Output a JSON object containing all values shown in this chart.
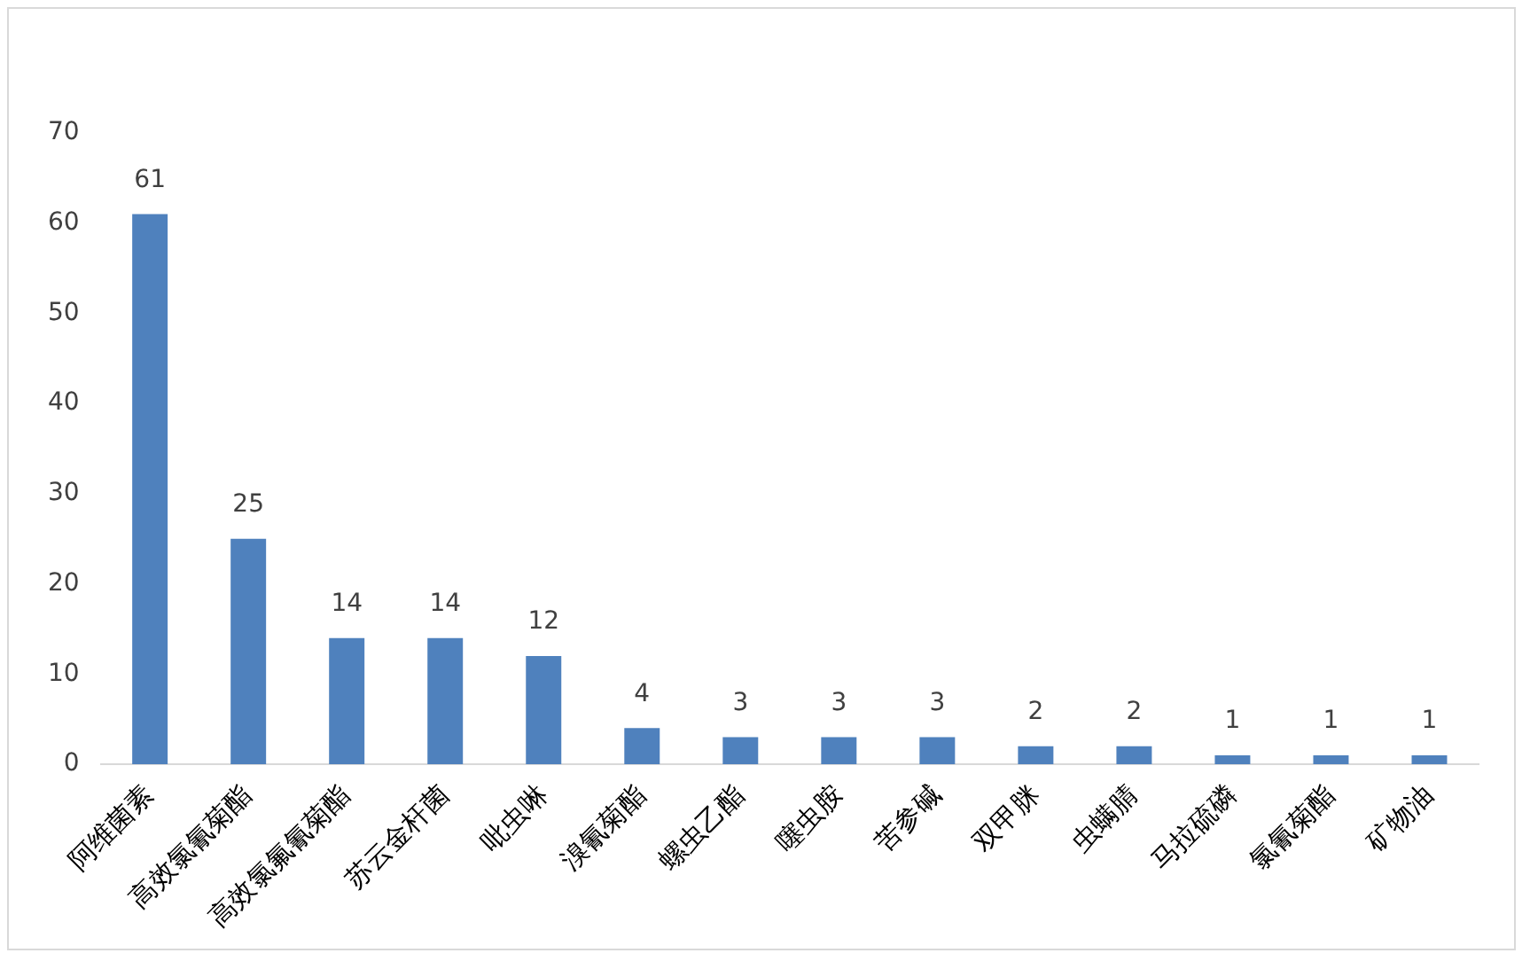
{
  "chart_data": {
    "type": "bar",
    "categories": [
      "阿维菌素",
      "高效氯氰菊酯",
      "高效氯氟氰菊酯",
      "苏云金杆菌",
      "吡虫啉",
      "溴氰菊酯",
      "螺虫乙酯",
      "噻虫胺",
      "苦参碱",
      "双甲脒",
      "虫螨腈",
      "马拉硫磷",
      "氯氰菊酯",
      "矿物油"
    ],
    "values": [
      61,
      25,
      14,
      14,
      12,
      4,
      3,
      3,
      3,
      2,
      2,
      1,
      1,
      1
    ],
    "color": "#4f81bd",
    "ylim": [
      0,
      70
    ],
    "yticks": [
      0,
      10,
      20,
      30,
      40,
      50,
      60,
      70
    ],
    "grid": false,
    "legend": false,
    "data_labels": true
  }
}
